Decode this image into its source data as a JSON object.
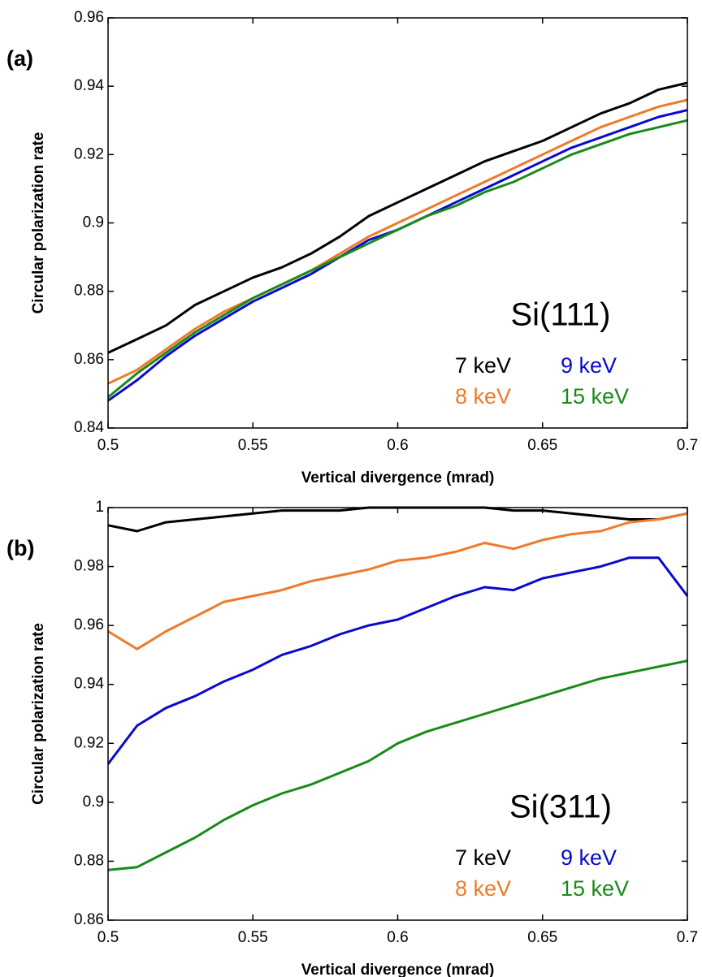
{
  "chart_data": [
    {
      "type": "line",
      "panel_label": "(a)",
      "annotation": "Si(111)",
      "xlabel": "Vertical divergence (mrad)",
      "ylabel": "Circular polarization rate",
      "xlim": [
        0.5,
        0.7
      ],
      "ylim": [
        0.84,
        0.96
      ],
      "xticks": [
        0.5,
        0.55,
        0.6,
        0.65,
        0.7
      ],
      "yticks": [
        0.84,
        0.86,
        0.88,
        0.9,
        0.92,
        0.94,
        0.96
      ],
      "x": [
        0.5,
        0.51,
        0.52,
        0.53,
        0.54,
        0.55,
        0.56,
        0.57,
        0.58,
        0.59,
        0.6,
        0.61,
        0.62,
        0.63,
        0.64,
        0.65,
        0.66,
        0.67,
        0.68,
        0.69,
        0.7
      ],
      "series": [
        {
          "name": "7 keV",
          "color": "#000000",
          "values": [
            0.862,
            0.866,
            0.87,
            0.876,
            0.88,
            0.884,
            0.887,
            0.891,
            0.896,
            0.902,
            0.906,
            0.91,
            0.914,
            0.918,
            0.921,
            0.924,
            0.928,
            0.932,
            0.935,
            0.939,
            0.941
          ]
        },
        {
          "name": "8 keV",
          "color": "#ee7a2a",
          "values": [
            0.853,
            0.857,
            0.863,
            0.869,
            0.874,
            0.878,
            0.882,
            0.886,
            0.891,
            0.896,
            0.9,
            0.904,
            0.908,
            0.912,
            0.916,
            0.92,
            0.924,
            0.928,
            0.931,
            0.934,
            0.936
          ]
        },
        {
          "name": "9 keV",
          "color": "#0a0acc",
          "values": [
            0.848,
            0.854,
            0.861,
            0.867,
            0.872,
            0.877,
            0.881,
            0.885,
            0.89,
            0.895,
            0.898,
            0.902,
            0.906,
            0.91,
            0.914,
            0.918,
            0.922,
            0.925,
            0.928,
            0.931,
            0.933
          ]
        },
        {
          "name": "15 keV",
          "color": "#1a8a1a",
          "values": [
            0.849,
            0.856,
            0.862,
            0.868,
            0.873,
            0.878,
            0.882,
            0.886,
            0.89,
            0.894,
            0.898,
            0.902,
            0.905,
            0.909,
            0.912,
            0.916,
            0.92,
            0.923,
            0.926,
            0.928,
            0.93
          ]
        }
      ]
    },
    {
      "type": "line",
      "panel_label": "(b)",
      "annotation": "Si(311)",
      "xlabel": "Vertical divergence (mrad)",
      "ylabel": "Circular polarization rate",
      "xlim": [
        0.5,
        0.7
      ],
      "ylim": [
        0.86,
        1
      ],
      "xticks": [
        0.5,
        0.55,
        0.6,
        0.65,
        0.7
      ],
      "yticks": [
        0.86,
        0.88,
        0.9,
        0.92,
        0.94,
        0.96,
        0.98,
        1
      ],
      "x": [
        0.5,
        0.51,
        0.52,
        0.53,
        0.54,
        0.55,
        0.56,
        0.57,
        0.58,
        0.59,
        0.6,
        0.61,
        0.62,
        0.63,
        0.64,
        0.65,
        0.66,
        0.67,
        0.68,
        0.69,
        0.7
      ],
      "series": [
        {
          "name": "7 keV",
          "color": "#000000",
          "values": [
            0.994,
            0.992,
            0.995,
            0.996,
            0.997,
            0.998,
            0.999,
            0.999,
            0.999,
            1,
            1,
            1,
            1,
            1,
            0.999,
            0.999,
            0.998,
            0.997,
            0.996,
            0.996,
            0.998
          ]
        },
        {
          "name": "8 keV",
          "color": "#ee7a2a",
          "values": [
            0.958,
            0.952,
            0.958,
            0.963,
            0.968,
            0.97,
            0.972,
            0.975,
            0.977,
            0.979,
            0.982,
            0.983,
            0.985,
            0.988,
            0.986,
            0.989,
            0.991,
            0.992,
            0.995,
            0.996,
            0.998
          ]
        },
        {
          "name": "9 keV",
          "color": "#0a0acc",
          "values": [
            0.913,
            0.926,
            0.932,
            0.936,
            0.941,
            0.945,
            0.95,
            0.953,
            0.957,
            0.96,
            0.962,
            0.966,
            0.97,
            0.973,
            0.972,
            0.976,
            0.978,
            0.98,
            0.983,
            0.983,
            0.97
          ]
        },
        {
          "name": "15 keV",
          "color": "#1a8a1a",
          "values": [
            0.877,
            0.878,
            0.883,
            0.888,
            0.894,
            0.899,
            0.903,
            0.906,
            0.91,
            0.914,
            0.92,
            0.924,
            0.927,
            0.93,
            0.933,
            0.936,
            0.939,
            0.942,
            0.944,
            0.946,
            0.948
          ]
        }
      ]
    }
  ]
}
